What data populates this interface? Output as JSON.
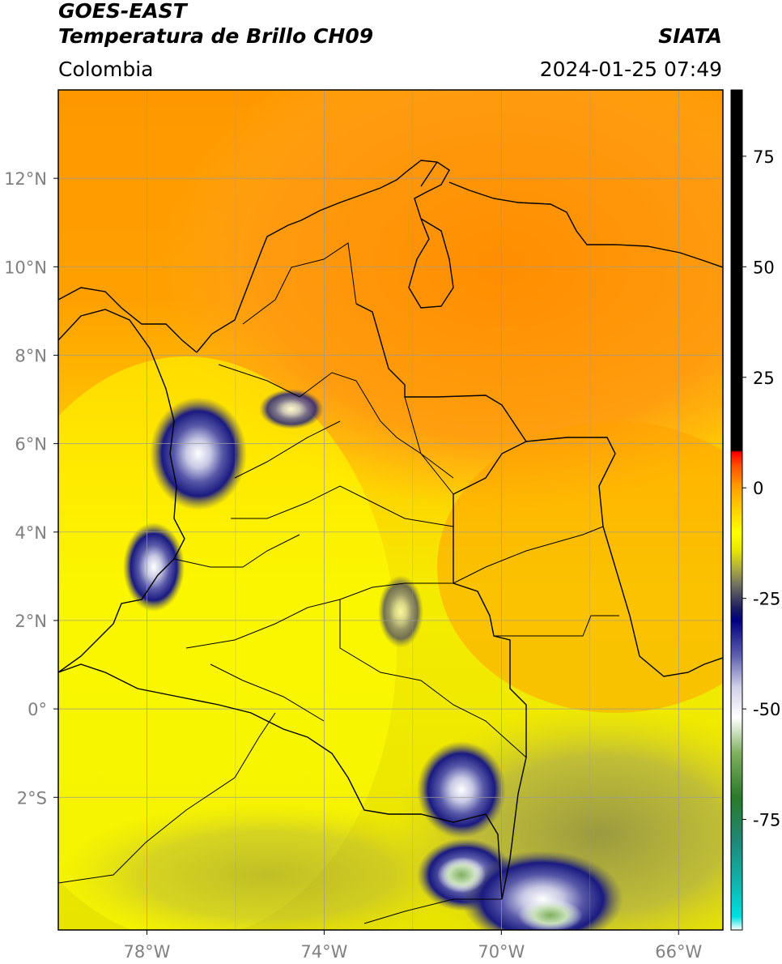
{
  "header": {
    "satellite": "GOES-EAST",
    "product": "Temperatura de Brillo CH09",
    "region": "Colombia",
    "agency": "SIATA",
    "timestamp": "2024-01-25 07:49"
  },
  "map": {
    "lon_range": [
      -80,
      -65
    ],
    "lat_range": [
      -5,
      14
    ],
    "lon_ticks": [
      {
        "value": -78,
        "label": "78°W"
      },
      {
        "value": -74,
        "label": "74°W"
      },
      {
        "value": -70,
        "label": "70°W"
      },
      {
        "value": -66,
        "label": "66°W"
      }
    ],
    "lat_ticks": [
      {
        "value": 12,
        "label": "12°N"
      },
      {
        "value": 10,
        "label": "10°N"
      },
      {
        "value": 8,
        "label": "8°N"
      },
      {
        "value": 6,
        "label": "6°N"
      },
      {
        "value": 4,
        "label": "4°N"
      },
      {
        "value": 2,
        "label": "2°N"
      },
      {
        "value": 0,
        "label": "0°"
      },
      {
        "value": -2,
        "label": "2°S"
      }
    ],
    "grid": true
  },
  "colorbar": {
    "range": [
      -100,
      90
    ],
    "ticks": [
      {
        "value": 75,
        "label": "75"
      },
      {
        "value": 50,
        "label": "50"
      },
      {
        "value": 25,
        "label": "25"
      },
      {
        "value": 0,
        "label": "0"
      },
      {
        "value": -25,
        "label": "-25"
      },
      {
        "value": -50,
        "label": "-50"
      },
      {
        "value": -75,
        "label": "-75"
      }
    ],
    "stops": [
      {
        "value": -100,
        "color": "#ffffff"
      },
      {
        "value": -97,
        "color": "#00e0e0"
      },
      {
        "value": -90,
        "color": "#10b8b0"
      },
      {
        "value": -80,
        "color": "#208878"
      },
      {
        "value": -70,
        "color": "#2a7a2a"
      },
      {
        "value": -60,
        "color": "#80b060"
      },
      {
        "value": -52,
        "color": "#ffffff"
      },
      {
        "value": -45,
        "color": "#d0d0e8"
      },
      {
        "value": -38,
        "color": "#6060b0"
      },
      {
        "value": -30,
        "color": "#000080"
      },
      {
        "value": -27,
        "color": "#202060"
      },
      {
        "value": -22,
        "color": "#707060"
      },
      {
        "value": -18,
        "color": "#b0b040"
      },
      {
        "value": -14,
        "color": "#e8e800"
      },
      {
        "value": -10,
        "color": "#ffff00"
      },
      {
        "value": -5,
        "color": "#ffd000"
      },
      {
        "value": 0,
        "color": "#ffa000"
      },
      {
        "value": 5,
        "color": "#ff5000"
      },
      {
        "value": 8,
        "color": "#ff0000"
      },
      {
        "value": 8.5,
        "color": "#000000"
      },
      {
        "value": 90,
        "color": "#000000"
      }
    ]
  },
  "colors": {
    "orange": "#ff9a10",
    "yellow": "#ffff00",
    "olive": "#b8b640",
    "cloud_navy": "#1a1a80",
    "grid": "#9a9a9a",
    "tick_label": "#808080"
  }
}
